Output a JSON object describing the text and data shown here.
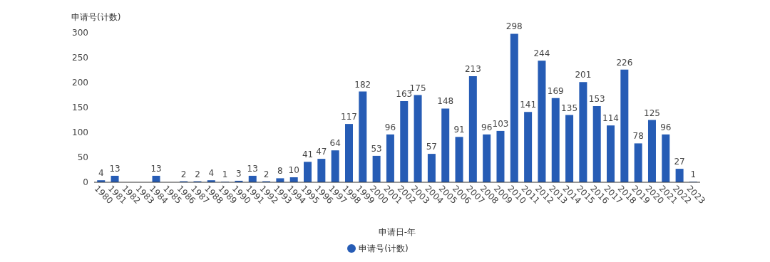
{
  "chart_data": {
    "type": "bar",
    "ylabel": "申请号(计数)",
    "xlabel": "申请日-年",
    "categories": [
      "1980",
      "1981",
      "1982",
      "1983",
      "1984",
      "1985",
      "1986",
      "1987",
      "1988",
      "1989",
      "1990",
      "1991",
      "1992",
      "1993",
      "1994",
      "1995",
      "1996",
      "1997",
      "1998",
      "1999",
      "2000",
      "2001",
      "2002",
      "2003",
      "2004",
      "2005",
      "2006",
      "2007",
      "2008",
      "2009",
      "2010",
      "2011",
      "2012",
      "2013",
      "2014",
      "2015",
      "2016",
      "2017",
      "2018",
      "2019",
      "2020",
      "2021",
      "2022",
      "2023"
    ],
    "series": [
      {
        "name": "申请号(计数)",
        "color": "#265cb5",
        "values": [
          4,
          13,
          null,
          null,
          13,
          null,
          2,
          2,
          4,
          1,
          3,
          13,
          2,
          8,
          10,
          41,
          47,
          64,
          117,
          182,
          53,
          96,
          163,
          175,
          57,
          148,
          91,
          213,
          96,
          103,
          298,
          141,
          244,
          169,
          135,
          201,
          153,
          114,
          226,
          78,
          125,
          96,
          27,
          1
        ]
      }
    ],
    "ylim": [
      0,
      300
    ],
    "yticks": [
      0,
      50,
      100,
      150,
      200,
      250,
      300
    ],
    "grid": false,
    "legend": "bottom",
    "data_labels": true
  }
}
